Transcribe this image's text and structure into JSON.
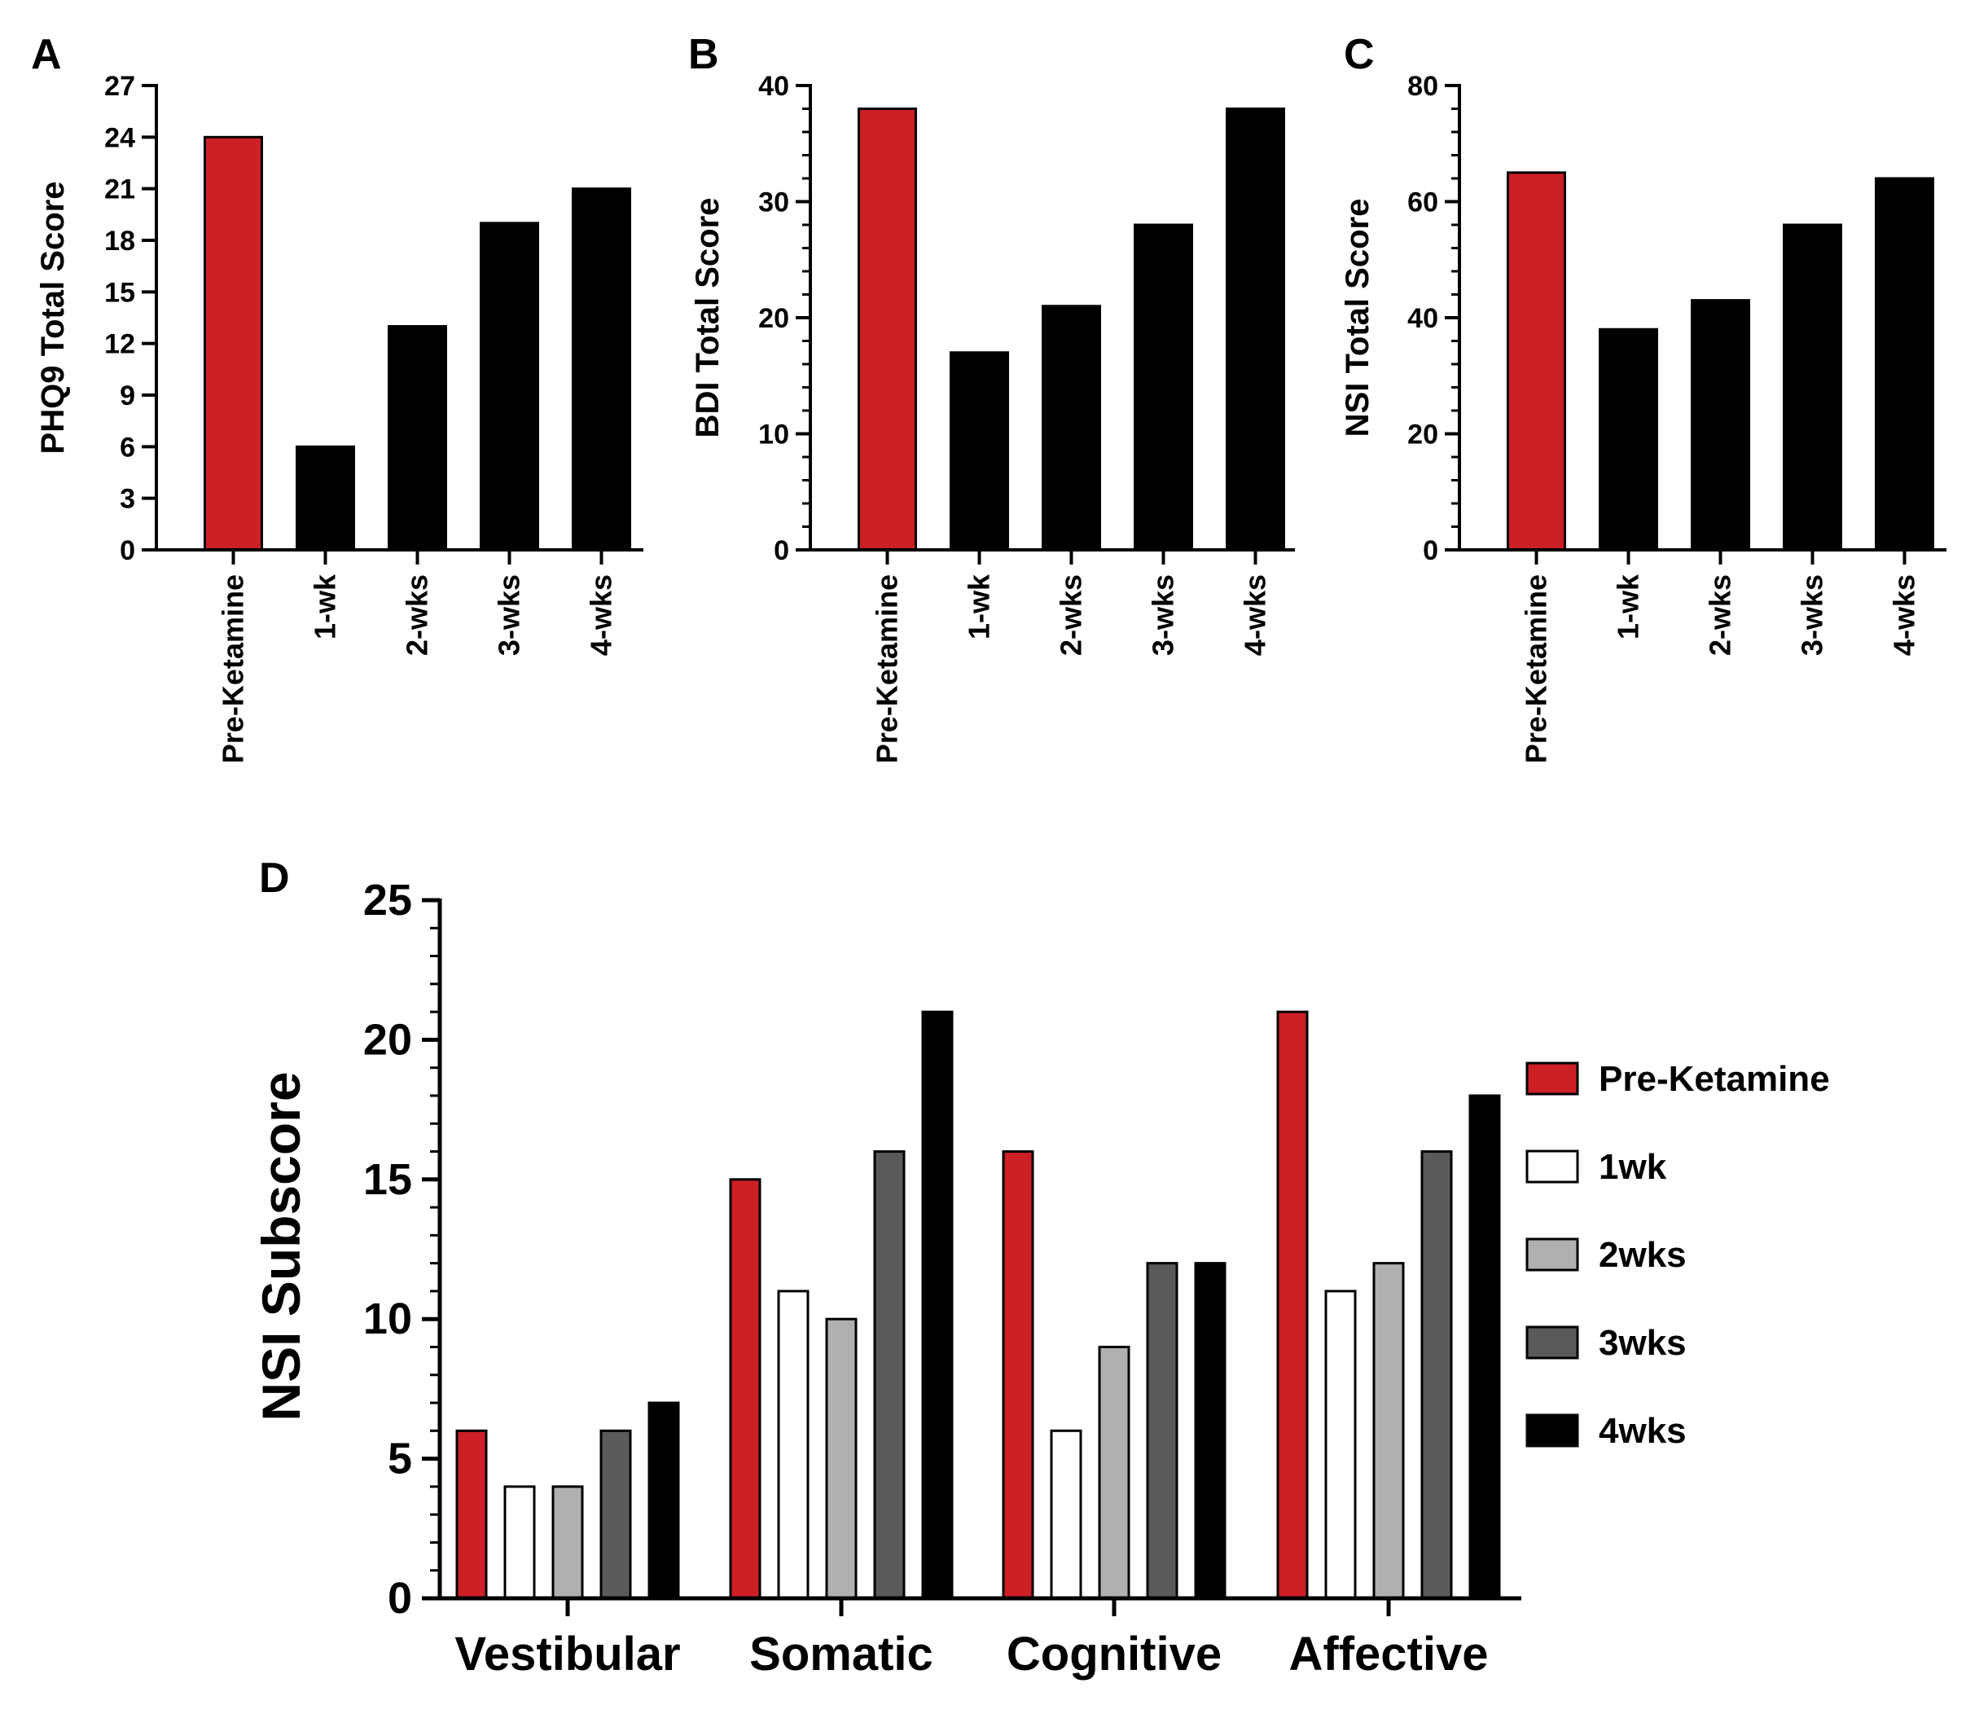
{
  "colors": {
    "pre": "#cc1f26",
    "bar": "#000000",
    "wk1": "#ffffff",
    "wk2": "#b0b0b0",
    "wk3": "#5a5a5a",
    "wk4": "#000000"
  },
  "chart_data": [
    {
      "id": "A",
      "type": "bar",
      "panel_label": "A",
      "ylabel": "PHQ9 Total Score",
      "categories": [
        "Pre-Ketamine",
        "1-wk",
        "2-wks",
        "3-wks",
        "4-wks"
      ],
      "values": [
        24,
        6,
        13,
        19,
        21
      ],
      "bar_colors": [
        "#cc1f26",
        "#000000",
        "#000000",
        "#000000",
        "#000000"
      ],
      "ylim": [
        0,
        27
      ],
      "yticks": [
        0,
        3,
        6,
        9,
        12,
        15,
        18,
        21,
        24,
        27
      ],
      "grid": false
    },
    {
      "id": "B",
      "type": "bar",
      "panel_label": "B",
      "ylabel": "BDI Total  Score",
      "categories": [
        "Pre-Ketamine",
        "1-wk",
        "2-wks",
        "3-wks",
        "4-wks"
      ],
      "values": [
        38,
        17,
        21,
        28,
        38
      ],
      "bar_colors": [
        "#cc1f26",
        "#000000",
        "#000000",
        "#000000",
        "#000000"
      ],
      "ylim": [
        0,
        40
      ],
      "yticks": [
        0,
        10,
        20,
        30,
        40
      ],
      "minor_step": 2,
      "grid": false
    },
    {
      "id": "C",
      "type": "bar",
      "panel_label": "C",
      "ylabel": "NSI Total  Score",
      "categories": [
        "Pre-Ketamine",
        "1-wk",
        "2-wks",
        "3-wks",
        "4-wks"
      ],
      "values": [
        65,
        38,
        43,
        56,
        64
      ],
      "bar_colors": [
        "#cc1f26",
        "#000000",
        "#000000",
        "#000000",
        "#000000"
      ],
      "ylim": [
        0,
        80
      ],
      "yticks": [
        0,
        20,
        40,
        60,
        80
      ],
      "minor_step": 4,
      "grid": false
    },
    {
      "id": "D",
      "type": "bar",
      "panel_label": "D",
      "ylabel": "NSI  Subscore",
      "categories": [
        "Vestibular",
        "Somatic",
        "Cognitive",
        "Affective"
      ],
      "series": [
        {
          "name": "Pre-Ketamine",
          "color": "#cc1f26",
          "values": [
            6,
            15,
            16,
            21
          ]
        },
        {
          "name": "1wk",
          "color": "#ffffff",
          "values": [
            4,
            11,
            6,
            11
          ]
        },
        {
          "name": "2wks",
          "color": "#b0b0b0",
          "values": [
            4,
            10,
            9,
            12
          ]
        },
        {
          "name": "3wks",
          "color": "#5a5a5a",
          "values": [
            6,
            16,
            12,
            16
          ]
        },
        {
          "name": "4wks",
          "color": "#000000",
          "values": [
            7,
            21,
            12,
            18
          ]
        }
      ],
      "ylim": [
        0,
        25
      ],
      "yticks": [
        0,
        5,
        10,
        15,
        20,
        25
      ],
      "minor_step": 1,
      "legend": "right",
      "grid": false
    }
  ]
}
